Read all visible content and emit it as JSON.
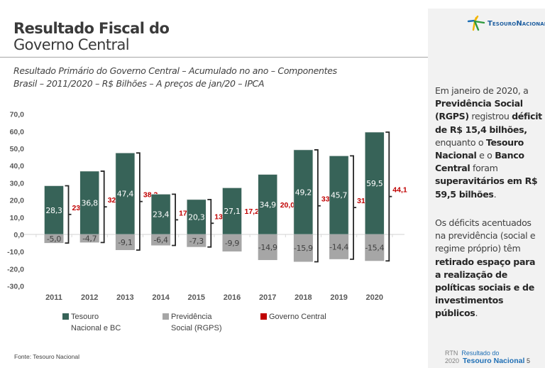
{
  "header": {
    "title_line1": "Resultado Fiscal do",
    "title_line2": "Governo Central",
    "subtitle_line1": "Resultado Primário do Governo Central – Acumulado no ano – Componentes",
    "subtitle_line2": "Brasil – 2011/2020 – R$ Bilhões – A preços de jan/20 – IPCA"
  },
  "logo": {
    "icon": "tesouro-star-icon",
    "text": "TesouroNacional"
  },
  "sidebar": {
    "paragraph1": [
      {
        "t": "Em janeiro de 2020, a ",
        "b": false
      },
      {
        "t": "Previdência Social (RGPS)",
        "b": true
      },
      {
        "t": " registrou ",
        "b": false
      },
      {
        "t": "déficit de R$ 15,4 bilhões,",
        "b": true
      },
      {
        "t": " enquanto o ",
        "b": false
      },
      {
        "t": "Tesouro Nacional",
        "b": true
      },
      {
        "t": " e o ",
        "b": false
      },
      {
        "t": "Banco Central",
        "b": true
      },
      {
        "t": " foram ",
        "b": false
      },
      {
        "t": "superavitários em R$ 59,5 bilhões",
        "b": true
      },
      {
        "t": ".",
        "b": false
      }
    ],
    "paragraph2": [
      {
        "t": "Os déficits acentuados na previdência (social e regime próprio) têm ",
        "b": false
      },
      {
        "t": "retirado espaço para a realização de políticas sociais e de investimentos públicos",
        "b": true
      },
      {
        "t": ".",
        "b": false
      }
    ]
  },
  "footer": {
    "source": "Fonte: Tesouro Nacional",
    "rtn": "RTN",
    "year": "2020",
    "pub_line1": "Resultado do",
    "pub_line2": "Tesouro Nacional",
    "page": "5"
  },
  "colors": {
    "tesouro": "#376358",
    "previdencia": "#a6a6a6",
    "governo": "#c00000",
    "text": "#404040"
  },
  "chart_data": {
    "type": "bar",
    "stacked": true,
    "title": "Resultado Primário do Governo Central – Acumulado no ano – Componentes",
    "xlabel": "",
    "ylabel": "",
    "ylim": [
      -30,
      70
    ],
    "yticks": [
      70,
      60,
      50,
      40,
      30,
      20,
      10,
      0,
      -10,
      -20,
      -30
    ],
    "ytick_labels": [
      "70,0",
      "60,0",
      "50,0",
      "40,0",
      "30,0",
      "20,0",
      "10,0",
      "0,0",
      "-10,0",
      "-20,0",
      "-30,0"
    ],
    "categories": [
      "2011",
      "2012",
      "2013",
      "2014",
      "2015",
      "2016",
      "2017",
      "2018",
      "2019",
      "2020"
    ],
    "series": [
      {
        "name": "Tesouro Nacional e BC",
        "color": "#376358",
        "values": [
          28.3,
          36.8,
          47.4,
          23.4,
          20.3,
          27.1,
          34.9,
          49.2,
          45.7,
          59.5
        ],
        "labels": [
          "28,3",
          "36,8",
          "47,4",
          "23,4",
          "20,3",
          "27,1",
          "34,9",
          "49,2",
          "45,7",
          "59,5"
        ]
      },
      {
        "name": "Previdência Social (RGPS)",
        "color": "#a6a6a6",
        "values": [
          -5.0,
          -4.7,
          -9.1,
          -6.4,
          -7.3,
          -9.9,
          -14.9,
          -15.9,
          -14.4,
          -15.4
        ],
        "labels": [
          "-5,0",
          "-4,7",
          "-9,1",
          "-6,4",
          "-7,3",
          "-9,9",
          "-14,9",
          "-15,9",
          "-14,4",
          "-15,4"
        ]
      },
      {
        "name": "Governo Central",
        "color": "#c00000",
        "values": [
          23.3,
          32.1,
          38.3,
          17.0,
          13.0,
          17.2,
          20.0,
          33.3,
          31.3,
          44.1
        ],
        "labels": [
          "23,3",
          "32,1",
          "38,3",
          "17,0",
          "13,0",
          "17,2",
          "20,0",
          "33,3",
          "31,3",
          "44,1"
        ]
      }
    ],
    "brackets": [
      true,
      true,
      true,
      true,
      true,
      false,
      false,
      true,
      true,
      true
    ],
    "legend": {
      "placement": "bottom",
      "items": [
        {
          "label_line1": "Tesouro",
          "label_line2": "Nacional e BC",
          "color": "#376358"
        },
        {
          "label_line1": "Previdência",
          "label_line2": "Social (RGPS)",
          "color": "#a6a6a6"
        },
        {
          "label_line1": "Governo Central",
          "label_line2": "",
          "color": "#c00000"
        }
      ]
    },
    "grid": false
  }
}
